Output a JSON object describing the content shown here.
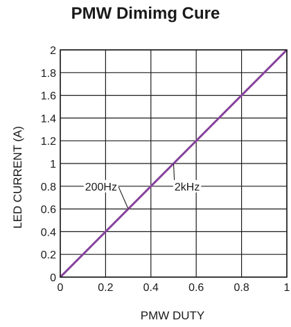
{
  "chart_data": {
    "type": "line",
    "title": "PMW Dimimg Cure",
    "xlabel": "PMW DUTY",
    "ylabel": "LED CURRENT (A)",
    "xlim": [
      0,
      1
    ],
    "ylim": [
      0,
      2
    ],
    "xticks": [
      "0",
      "0.2",
      "0.4",
      "0.6",
      "0.8",
      "1"
    ],
    "yticks": [
      "0",
      "0.2",
      "0.4",
      "0.6",
      "0.8",
      "1",
      "1.2",
      "1.4",
      "1.6",
      "1.8",
      "2"
    ],
    "grid": true,
    "series": [
      {
        "name": "200Hz",
        "color": "#9b59a8",
        "x": [
          0,
          1
        ],
        "y": [
          0,
          2
        ]
      },
      {
        "name": "2kHz",
        "color": "#7d3c98",
        "x": [
          0,
          1
        ],
        "y": [
          0,
          2
        ]
      }
    ],
    "annotations": [
      {
        "text": "200Hz",
        "x": 0.3,
        "y": 0.6,
        "label_x": 0.18,
        "label_y": 0.8
      },
      {
        "text": "2kHz",
        "x": 0.5,
        "y": 1.0,
        "label_x": 0.56,
        "label_y": 0.8
      }
    ]
  }
}
